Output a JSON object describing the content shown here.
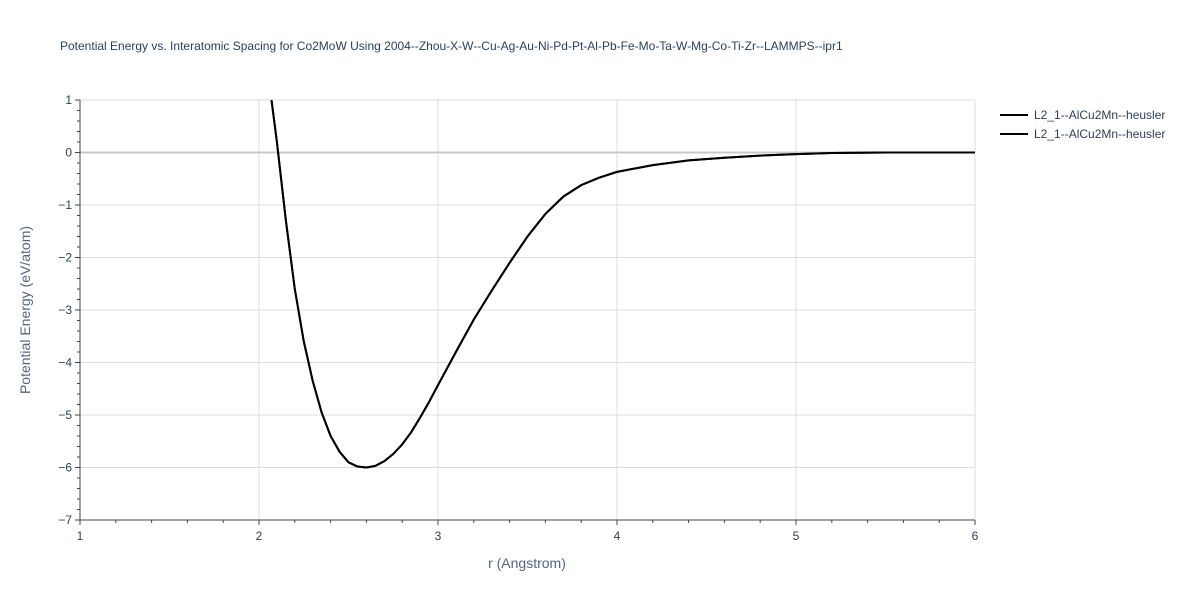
{
  "chart_data": {
    "type": "line",
    "title": "Potential Energy vs. Interatomic Spacing for Co2MoW Using 2004--Zhou-X-W--Cu-Ag-Au-Ni-Pd-Pt-Al-Pb-Fe-Mo-Ta-W-Mg-Co-Ti-Zr--LAMMPS--ipr1",
    "xlabel": "r (Angstrom)",
    "ylabel": "Potential Energy (eV/atom)",
    "xlim": [
      1,
      6
    ],
    "ylim": [
      -7,
      1
    ],
    "x_ticks": [
      1,
      2,
      3,
      4,
      5,
      6
    ],
    "x_tick_labels": [
      "1",
      "2",
      "3",
      "4",
      "5",
      "6"
    ],
    "y_ticks": [
      1,
      0,
      -1,
      -2,
      -3,
      -4,
      -5,
      -6,
      -7
    ],
    "y_tick_labels": [
      "1",
      "0",
      "−1",
      "−2",
      "−3",
      "−4",
      "−5",
      "−6",
      "−7"
    ],
    "grid": true,
    "legend_position": "top-right",
    "series": [
      {
        "name": "L2_1--AlCu2Mn--heusler",
        "color": "#000000",
        "x": [
          2.07,
          2.1,
          2.15,
          2.2,
          2.25,
          2.3,
          2.35,
          2.4,
          2.45,
          2.5,
          2.55,
          2.6,
          2.65,
          2.7,
          2.75,
          2.8,
          2.85,
          2.9,
          2.95,
          3.0,
          3.1,
          3.2,
          3.3,
          3.4,
          3.5,
          3.6,
          3.7,
          3.8,
          3.9,
          4.0,
          4.2,
          4.4,
          4.6,
          4.8,
          5.0,
          5.2,
          5.5,
          6.0
        ],
        "y": [
          1.0,
          0.2,
          -1.3,
          -2.6,
          -3.6,
          -4.35,
          -4.95,
          -5.4,
          -5.7,
          -5.9,
          -5.98,
          -6.0,
          -5.97,
          -5.88,
          -5.74,
          -5.56,
          -5.33,
          -5.05,
          -4.75,
          -4.43,
          -3.8,
          -3.18,
          -2.63,
          -2.1,
          -1.6,
          -1.17,
          -0.84,
          -0.62,
          -0.48,
          -0.37,
          -0.24,
          -0.15,
          -0.1,
          -0.06,
          -0.03,
          -0.01,
          0.0,
          0.0
        ]
      },
      {
        "name": "L2_1--AlCu2Mn--heusler",
        "color": "#000000",
        "x": [
          2.07,
          2.1,
          2.15,
          2.2,
          2.25,
          2.3,
          2.35,
          2.4,
          2.45,
          2.5,
          2.55,
          2.6,
          2.65,
          2.7,
          2.75,
          2.8,
          2.85,
          2.9,
          2.95,
          3.0,
          3.1,
          3.2,
          3.3,
          3.4,
          3.5,
          3.6,
          3.7,
          3.8,
          3.9,
          4.0,
          4.2,
          4.4,
          4.6,
          4.8,
          5.0,
          5.2,
          5.5,
          6.0
        ],
        "y": [
          1.0,
          0.2,
          -1.3,
          -2.6,
          -3.6,
          -4.35,
          -4.95,
          -5.4,
          -5.7,
          -5.9,
          -5.98,
          -6.0,
          -5.97,
          -5.88,
          -5.74,
          -5.56,
          -5.33,
          -5.05,
          -4.75,
          -4.43,
          -3.8,
          -3.18,
          -2.63,
          -2.1,
          -1.6,
          -1.17,
          -0.84,
          -0.62,
          -0.48,
          -0.37,
          -0.24,
          -0.15,
          -0.1,
          -0.06,
          -0.03,
          -0.01,
          0.0,
          0.0
        ]
      }
    ]
  }
}
